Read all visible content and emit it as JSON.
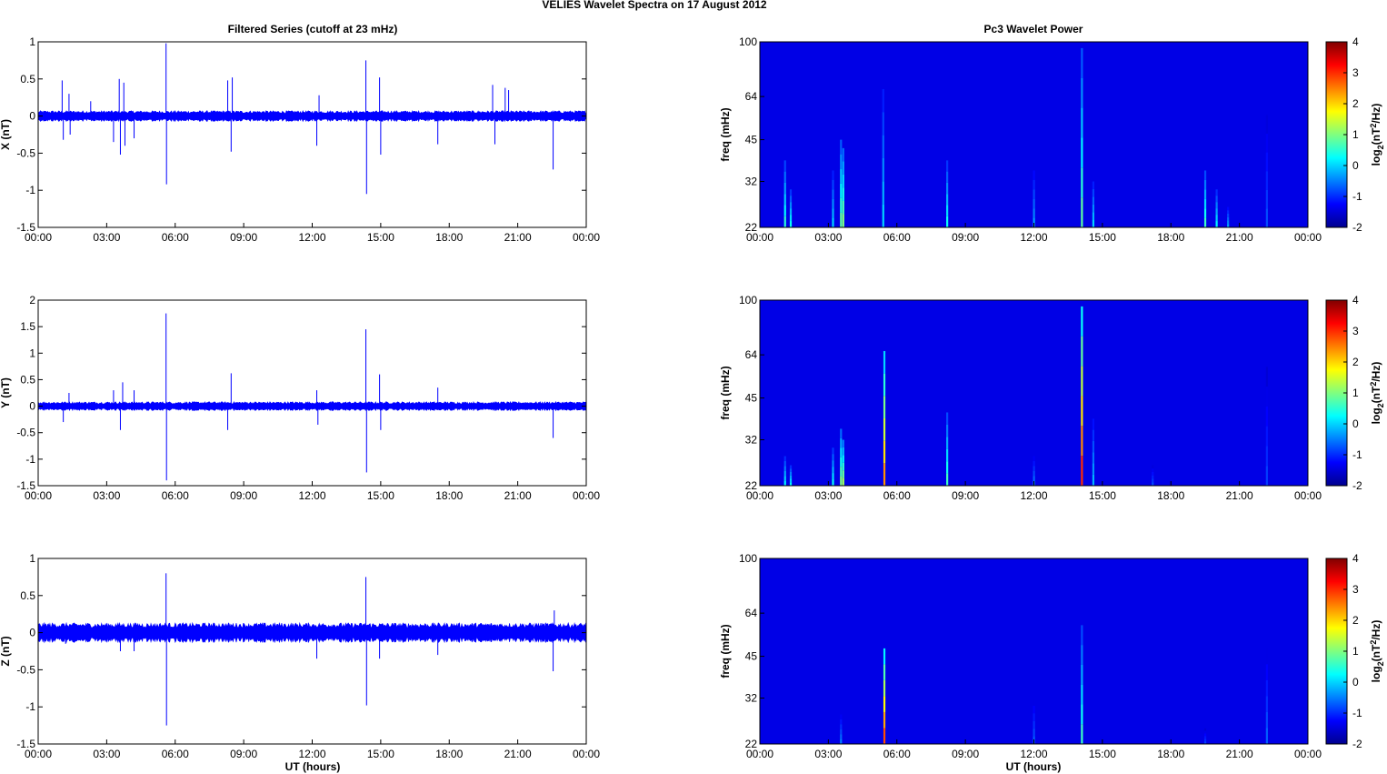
{
  "figure": {
    "title": "VELIES Wavelet Spectra on 17 August    2012",
    "left_column_title": "Filtered Series (cutoff at 23 mHz)",
    "right_column_title": "Pc3 Wavelet Power",
    "bottom_xlabel": "UT (hours)"
  },
  "chart_data": [
    {
      "type": "line",
      "panel": "series-x",
      "ylabel": "X (nT)",
      "ylim": [
        -1.5,
        1
      ],
      "yticks": [
        "1",
        "0.5",
        "0",
        "-0.5",
        "-1",
        "-1.5"
      ],
      "xticks": [
        "00:00",
        "03:00",
        "06:00",
        "09:00",
        "12:00",
        "15:00",
        "18:00",
        "21:00",
        "00:00"
      ],
      "xlim_hours": [
        0,
        24
      ],
      "line_color": "#0000ff",
      "noise_amplitude": 0.06,
      "spikes": [
        {
          "t": 1.05,
          "v": 0.48
        },
        {
          "t": 1.1,
          "v": -0.32
        },
        {
          "t": 1.35,
          "v": 0.3
        },
        {
          "t": 1.4,
          "v": -0.25
        },
        {
          "t": 2.3,
          "v": 0.2
        },
        {
          "t": 3.3,
          "v": -0.35
        },
        {
          "t": 3.55,
          "v": 0.5
        },
        {
          "t": 3.6,
          "v": -0.52
        },
        {
          "t": 3.75,
          "v": 0.45
        },
        {
          "t": 3.8,
          "v": -0.4
        },
        {
          "t": 4.2,
          "v": -0.3
        },
        {
          "t": 5.6,
          "v": 0.98
        },
        {
          "t": 5.62,
          "v": -0.92
        },
        {
          "t": 8.3,
          "v": 0.48
        },
        {
          "t": 8.45,
          "v": -0.48
        },
        {
          "t": 8.5,
          "v": 0.52
        },
        {
          "t": 12.2,
          "v": -0.4
        },
        {
          "t": 12.3,
          "v": 0.28
        },
        {
          "t": 14.35,
          "v": 0.75
        },
        {
          "t": 14.38,
          "v": -1.05
        },
        {
          "t": 14.95,
          "v": 0.52
        },
        {
          "t": 15.0,
          "v": -0.52
        },
        {
          "t": 17.5,
          "v": -0.38
        },
        {
          "t": 19.9,
          "v": 0.42
        },
        {
          "t": 20.0,
          "v": -0.38
        },
        {
          "t": 20.45,
          "v": 0.38
        },
        {
          "t": 20.6,
          "v": 0.35
        },
        {
          "t": 22.55,
          "v": -0.72
        }
      ]
    },
    {
      "type": "line",
      "panel": "series-y",
      "ylabel": "Y (nT)",
      "ylim": [
        -1.5,
        2
      ],
      "yticks": [
        "2",
        "1.5",
        "1",
        "0.5",
        "0",
        "-0.5",
        "-1",
        "-1.5"
      ],
      "xticks": [
        "00:00",
        "03:00",
        "06:00",
        "09:00",
        "12:00",
        "15:00",
        "18:00",
        "21:00",
        "00:00"
      ],
      "xlim_hours": [
        0,
        24
      ],
      "line_color": "#0000ff",
      "noise_amplitude": 0.07,
      "spikes": [
        {
          "t": 1.1,
          "v": -0.3
        },
        {
          "t": 1.35,
          "v": 0.25
        },
        {
          "t": 3.3,
          "v": 0.3
        },
        {
          "t": 3.6,
          "v": -0.45
        },
        {
          "t": 3.7,
          "v": 0.45
        },
        {
          "t": 4.2,
          "v": 0.3
        },
        {
          "t": 5.6,
          "v": 1.75
        },
        {
          "t": 5.62,
          "v": -1.4
        },
        {
          "t": 8.3,
          "v": -0.45
        },
        {
          "t": 8.45,
          "v": 0.62
        },
        {
          "t": 12.2,
          "v": 0.3
        },
        {
          "t": 12.25,
          "v": -0.35
        },
        {
          "t": 14.35,
          "v": 1.45
        },
        {
          "t": 14.38,
          "v": -1.25
        },
        {
          "t": 14.95,
          "v": 0.6
        },
        {
          "t": 15.0,
          "v": -0.45
        },
        {
          "t": 17.5,
          "v": 0.35
        },
        {
          "t": 22.55,
          "v": -0.6
        }
      ]
    },
    {
      "type": "line",
      "panel": "series-z",
      "ylabel": "Z (nT)",
      "ylim": [
        -1.5,
        1
      ],
      "yticks": [
        "1",
        "0.5",
        "0",
        "-0.5",
        "-1",
        "-1.5"
      ],
      "xticks": [
        "00:00",
        "03:00",
        "06:00",
        "09:00",
        "12:00",
        "15:00",
        "18:00",
        "21:00",
        "00:00"
      ],
      "xlim_hours": [
        0,
        24
      ],
      "line_color": "#0000ff",
      "noise_amplitude": 0.11,
      "spikes": [
        {
          "t": 1.2,
          "v": -0.15
        },
        {
          "t": 3.6,
          "v": -0.25
        },
        {
          "t": 4.2,
          "v": -0.25
        },
        {
          "t": 5.6,
          "v": 0.8
        },
        {
          "t": 5.62,
          "v": -1.25
        },
        {
          "t": 12.2,
          "v": -0.35
        },
        {
          "t": 14.35,
          "v": 0.75
        },
        {
          "t": 14.38,
          "v": -0.98
        },
        {
          "t": 14.95,
          "v": -0.35
        },
        {
          "t": 17.5,
          "v": -0.3
        },
        {
          "t": 22.55,
          "v": -0.52
        },
        {
          "t": 22.6,
          "v": 0.3
        }
      ]
    },
    {
      "type": "heatmap",
      "panel": "power-x",
      "ylabel": "freq (mHz)",
      "yticks": [
        "100",
        "64",
        "45",
        "32",
        "22"
      ],
      "xticks": [
        "00:00",
        "03:00",
        "06:00",
        "09:00",
        "12:00",
        "15:00",
        "18:00",
        "21:00",
        "00:00"
      ],
      "background_level": -2,
      "clim": [
        -2,
        4
      ],
      "colorbar_ticks": [
        "4",
        "3",
        "2",
        "1",
        "0",
        "-1",
        "-2"
      ],
      "colorbar_label": "log2(nT2/Hz)",
      "streaks": [
        {
          "t": 1.1,
          "f": 38,
          "p": 0.5
        },
        {
          "t": 1.35,
          "f": 30,
          "p": 0.3
        },
        {
          "t": 3.2,
          "f": 35,
          "p": 0.0
        },
        {
          "t": 3.55,
          "f": 45,
          "p": 0.8
        },
        {
          "t": 3.65,
          "f": 42,
          "p": 1.0
        },
        {
          "t": 5.4,
          "f": 68,
          "p": 0.0
        },
        {
          "t": 8.2,
          "f": 38,
          "p": 0.3
        },
        {
          "t": 12.0,
          "f": 35,
          "p": -0.3
        },
        {
          "t": 14.1,
          "f": 95,
          "p": 0.8
        },
        {
          "t": 14.6,
          "f": 32,
          "p": 0.0
        },
        {
          "t": 19.5,
          "f": 35,
          "p": 0.6
        },
        {
          "t": 20.0,
          "f": 30,
          "p": 0.2
        },
        {
          "t": 20.5,
          "f": 26,
          "p": -0.3
        },
        {
          "t": 22.2,
          "f": 55,
          "p": -0.8
        }
      ]
    },
    {
      "type": "heatmap",
      "panel": "power-y",
      "ylabel": "freq (mHz)",
      "yticks": [
        "100",
        "64",
        "45",
        "32",
        "22"
      ],
      "xticks": [
        "00:00",
        "03:00",
        "06:00",
        "09:00",
        "12:00",
        "15:00",
        "18:00",
        "21:00",
        "00:00"
      ],
      "background_level": -2,
      "clim": [
        -2,
        4
      ],
      "colorbar_ticks": [
        "4",
        "3",
        "2",
        "1",
        "0",
        "-1",
        "-2"
      ],
      "colorbar_label": "log2(nT2/Hz)",
      "streaks": [
        {
          "t": 1.1,
          "f": 28,
          "p": 0.2
        },
        {
          "t": 1.35,
          "f": 26,
          "p": 0.2
        },
        {
          "t": 3.2,
          "f": 30,
          "p": 0.3
        },
        {
          "t": 3.55,
          "f": 35,
          "p": 1.0
        },
        {
          "t": 3.65,
          "f": 32,
          "p": 1.2
        },
        {
          "t": 5.45,
          "f": 66,
          "p": 2.4
        },
        {
          "t": 8.2,
          "f": 40,
          "p": 0.6
        },
        {
          "t": 12.0,
          "f": 28,
          "p": -0.5
        },
        {
          "t": 14.1,
          "f": 95,
          "p": 3.0
        },
        {
          "t": 14.6,
          "f": 38,
          "p": -0.2
        },
        {
          "t": 17.2,
          "f": 26,
          "p": -0.8
        },
        {
          "t": 22.2,
          "f": 58,
          "p": -0.9
        }
      ]
    },
    {
      "type": "heatmap",
      "panel": "power-z",
      "ylabel": "freq (mHz)",
      "yticks": [
        "100",
        "64",
        "45",
        "32",
        "22"
      ],
      "xticks": [
        "00:00",
        "03:00",
        "06:00",
        "09:00",
        "12:00",
        "15:00",
        "18:00",
        "21:00",
        "00:00"
      ],
      "xlabel": "UT (hours)",
      "background_level": -2,
      "clim": [
        -2,
        4
      ],
      "colorbar_ticks": [
        "4",
        "3",
        "2",
        "1",
        "0",
        "-1",
        "-2"
      ],
      "colorbar_label": "log2(nT2/Hz)",
      "streaks": [
        {
          "t": 3.55,
          "f": 28,
          "p": -0.5
        },
        {
          "t": 5.45,
          "f": 48,
          "p": 2.8
        },
        {
          "t": 12.0,
          "f": 32,
          "p": -0.7
        },
        {
          "t": 14.1,
          "f": 58,
          "p": 0.6
        },
        {
          "t": 19.5,
          "f": 25,
          "p": -0.9
        },
        {
          "t": 22.2,
          "f": 48,
          "p": -0.7
        }
      ]
    }
  ]
}
